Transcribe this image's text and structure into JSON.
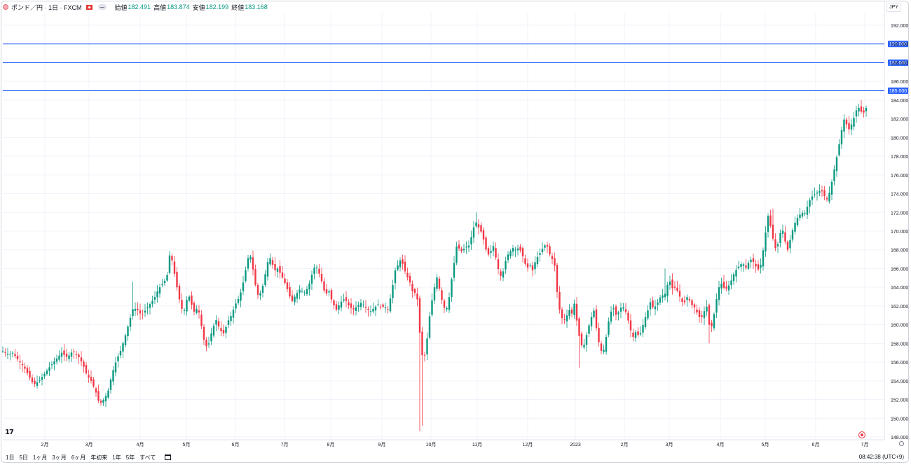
{
  "header": {
    "symbol": "ポンド／円 · 1日 · FXCM",
    "open_label": "始値",
    "open": "182.491",
    "high_label": "高値",
    "high": "183.874",
    "low_label": "安値",
    "low": "182.199",
    "close_label": "終値",
    "close": "183.168",
    "currency": "JPY"
  },
  "bottom": {
    "ranges": [
      "1日",
      "5日",
      "1ヶ月",
      "3ヶ月",
      "6ヶ月",
      "年初来",
      "1年",
      "5年",
      "すべて"
    ],
    "clock": "08:42:38 (UTC+9)"
  },
  "colors": {
    "up": "#089981",
    "down": "#f23645",
    "hline": "#2962ff",
    "grid": "#f0f3fa"
  },
  "chart_data": {
    "type": "candlestick",
    "ylim": [
      148,
      193
    ],
    "yticks": [
      148,
      150,
      152,
      154,
      156,
      158,
      160,
      162,
      164,
      166,
      168,
      170,
      172,
      174,
      176,
      178,
      180,
      182,
      184,
      186,
      188,
      190,
      192
    ],
    "ytick_labels": [
      "148.000",
      "150.000",
      "152.000",
      "154.000",
      "156.000",
      "158.000",
      "160.000",
      "162.000",
      "164.000",
      "166.000",
      "168.000",
      "170.000",
      "172.000",
      "174.000",
      "176.000",
      "178.000",
      "180.000",
      "182.000",
      "184.000",
      "186.000",
      "188.000",
      "190.000",
      "192.000"
    ],
    "xticks": [
      "2月",
      "3月",
      "4月",
      "5月",
      "6月",
      "7月",
      "8月",
      "9月",
      "10月",
      "11月",
      "12月",
      "2023",
      "2月",
      "3月",
      "4月",
      "5月",
      "6月",
      "7月"
    ],
    "horizontal_lines": [
      {
        "value": 190.0,
        "label": "190.000"
      },
      {
        "value": 188.0,
        "label": "188.000"
      },
      {
        "value": 185.0,
        "label": "185.000"
      }
    ],
    "close_path": [
      [
        0,
        157.2
      ],
      [
        8,
        156.8
      ],
      [
        14,
        157.0
      ],
      [
        22,
        156.2
      ],
      [
        30,
        155.5
      ],
      [
        38,
        154.4
      ],
      [
        44,
        153.6
      ],
      [
        52,
        154.0
      ],
      [
        60,
        154.8
      ],
      [
        68,
        155.6
      ],
      [
        76,
        156.3
      ],
      [
        84,
        157.0
      ],
      [
        92,
        156.5
      ],
      [
        100,
        157.2
      ],
      [
        108,
        156.6
      ],
      [
        114,
        155.8
      ],
      [
        120,
        154.6
      ],
      [
        126,
        154.0
      ],
      [
        132,
        153.0
      ],
      [
        138,
        151.5
      ],
      [
        144,
        152.0
      ],
      [
        150,
        152.8
      ],
      [
        156,
        154.8
      ],
      [
        162,
        156.2
      ],
      [
        168,
        157.2
      ],
      [
        174,
        158.6
      ],
      [
        180,
        160.2
      ],
      [
        186,
        161.8
      ],
      [
        192,
        161.6
      ],
      [
        198,
        161.0
      ],
      [
        204,
        161.6
      ],
      [
        210,
        162.2
      ],
      [
        216,
        162.8
      ],
      [
        222,
        163.8
      ],
      [
        228,
        164.4
      ],
      [
        234,
        165.0
      ],
      [
        238,
        167.4
      ],
      [
        242,
        166.8
      ],
      [
        246,
        165.0
      ],
      [
        250,
        163.4
      ],
      [
        254,
        162.0
      ],
      [
        258,
        161.2
      ],
      [
        262,
        162.6
      ],
      [
        266,
        163.0
      ],
      [
        270,
        162.0
      ],
      [
        274,
        161.2
      ],
      [
        278,
        162.0
      ],
      [
        282,
        160.6
      ],
      [
        286,
        158.6
      ],
      [
        292,
        157.4
      ],
      [
        298,
        159.2
      ],
      [
        304,
        160.6
      ],
      [
        310,
        159.4
      ],
      [
        316,
        159.0
      ],
      [
        320,
        160.2
      ],
      [
        326,
        161.0
      ],
      [
        332,
        162.2
      ],
      [
        338,
        163.0
      ],
      [
        344,
        164.8
      ],
      [
        348,
        166.4
      ],
      [
        352,
        167.8
      ],
      [
        356,
        166.4
      ],
      [
        360,
        164.4
      ],
      [
        364,
        163.2
      ],
      [
        368,
        163.4
      ],
      [
        372,
        164.4
      ],
      [
        376,
        166.0
      ],
      [
        380,
        167.4
      ],
      [
        384,
        166.6
      ],
      [
        388,
        165.8
      ],
      [
        392,
        166.0
      ],
      [
        398,
        165.2
      ],
      [
        404,
        164.2
      ],
      [
        408,
        163.4
      ],
      [
        412,
        162.4
      ],
      [
        418,
        163.2
      ],
      [
        424,
        163.8
      ],
      [
        430,
        163.4
      ],
      [
        436,
        164.0
      ],
      [
        442,
        165.6
      ],
      [
        446,
        166.4
      ],
      [
        450,
        165.8
      ],
      [
        456,
        164.4
      ],
      [
        460,
        163.2
      ],
      [
        466,
        163.6
      ],
      [
        470,
        162.4
      ],
      [
        476,
        161.6
      ],
      [
        482,
        162.4
      ],
      [
        488,
        162.8
      ],
      [
        494,
        162.0
      ],
      [
        500,
        161.6
      ],
      [
        506,
        162.0
      ],
      [
        512,
        162.4
      ],
      [
        518,
        161.8
      ],
      [
        524,
        161.4
      ],
      [
        530,
        161.8
      ],
      [
        536,
        162.2
      ],
      [
        540,
        161.8
      ],
      [
        544,
        162.0
      ],
      [
        550,
        161.6
      ],
      [
        556,
        164.0
      ],
      [
        560,
        165.8
      ],
      [
        564,
        166.4
      ],
      [
        568,
        167.0
      ],
      [
        572,
        166.2
      ],
      [
        576,
        165.2
      ],
      [
        580,
        164.8
      ],
      [
        584,
        163.6
      ],
      [
        588,
        163.4
      ],
      [
        592,
        162.6
      ],
      [
        596,
        158.0
      ],
      [
        600,
        156.0
      ],
      [
        604,
        157.4
      ],
      [
        608,
        160.4
      ],
      [
        612,
        162.4
      ],
      [
        616,
        164.0
      ],
      [
        620,
        165.2
      ],
      [
        624,
        163.4
      ],
      [
        628,
        162.2
      ],
      [
        632,
        161.4
      ],
      [
        636,
        162.4
      ],
      [
        640,
        164.6
      ],
      [
        644,
        166.6
      ],
      [
        648,
        168.6
      ],
      [
        652,
        168.0
      ],
      [
        656,
        167.8
      ],
      [
        660,
        168.4
      ],
      [
        664,
        168.2
      ],
      [
        668,
        169.2
      ],
      [
        672,
        170.4
      ],
      [
        676,
        171.0
      ],
      [
        680,
        170.2
      ],
      [
        684,
        169.8
      ],
      [
        688,
        168.4
      ],
      [
        692,
        167.4
      ],
      [
        696,
        167.8
      ],
      [
        700,
        168.4
      ],
      [
        704,
        167.0
      ],
      [
        708,
        165.6
      ],
      [
        712,
        165.0
      ],
      [
        716,
        166.4
      ],
      [
        720,
        167.4
      ],
      [
        724,
        167.8
      ],
      [
        728,
        168.2
      ],
      [
        732,
        168.0
      ],
      [
        736,
        168.2
      ],
      [
        740,
        167.8
      ],
      [
        744,
        166.8
      ],
      [
        748,
        166.0
      ],
      [
        752,
        166.4
      ],
      [
        756,
        165.8
      ],
      [
        760,
        166.8
      ],
      [
        764,
        167.4
      ],
      [
        768,
        167.8
      ],
      [
        772,
        168.4
      ],
      [
        776,
        168.6
      ],
      [
        780,
        167.6
      ],
      [
        784,
        167.0
      ],
      [
        788,
        166.2
      ],
      [
        792,
        162.6
      ],
      [
        796,
        161.0
      ],
      [
        800,
        160.4
      ],
      [
        804,
        160.8
      ],
      [
        808,
        161.6
      ],
      [
        812,
        161.2
      ],
      [
        816,
        162.4
      ],
      [
        820,
        159.8
      ],
      [
        824,
        158.2
      ],
      [
        828,
        157.4
      ],
      [
        832,
        158.6
      ],
      [
        836,
        159.8
      ],
      [
        840,
        160.8
      ],
      [
        844,
        161.6
      ],
      [
        848,
        159.0
      ],
      [
        852,
        157.6
      ],
      [
        856,
        156.8
      ],
      [
        860,
        158.2
      ],
      [
        864,
        160.2
      ],
      [
        868,
        161.4
      ],
      [
        872,
        161.8
      ],
      [
        876,
        160.8
      ],
      [
        880,
        161.6
      ],
      [
        884,
        162.0
      ],
      [
        888,
        161.6
      ],
      [
        892,
        160.6
      ],
      [
        896,
        159.4
      ],
      [
        900,
        158.6
      ],
      [
        904,
        159.4
      ],
      [
        908,
        158.6
      ],
      [
        912,
        159.6
      ],
      [
        916,
        160.6
      ],
      [
        920,
        161.4
      ],
      [
        924,
        162.4
      ],
      [
        928,
        161.8
      ],
      [
        932,
        162.0
      ],
      [
        936,
        162.6
      ],
      [
        940,
        163.2
      ],
      [
        944,
        163.0
      ],
      [
        948,
        164.2
      ],
      [
        952,
        164.6
      ],
      [
        956,
        163.8
      ],
      [
        960,
        164.0
      ],
      [
        964,
        163.4
      ],
      [
        968,
        162.6
      ],
      [
        972,
        162.2
      ],
      [
        976,
        163.0
      ],
      [
        980,
        162.6
      ],
      [
        984,
        162.0
      ],
      [
        988,
        161.8
      ],
      [
        992,
        161.0
      ],
      [
        996,
        160.6
      ],
      [
        1000,
        161.2
      ],
      [
        1004,
        162.2
      ],
      [
        1008,
        160.0
      ],
      [
        1012,
        159.8
      ],
      [
        1016,
        161.6
      ],
      [
        1020,
        163.4
      ],
      [
        1024,
        164.6
      ],
      [
        1028,
        164.0
      ],
      [
        1032,
        163.8
      ],
      [
        1036,
        164.2
      ],
      [
        1040,
        164.8
      ],
      [
        1044,
        165.6
      ],
      [
        1048,
        166.0
      ],
      [
        1052,
        166.4
      ],
      [
        1056,
        166.6
      ],
      [
        1060,
        166.0
      ],
      [
        1064,
        166.6
      ],
      [
        1068,
        167.0
      ],
      [
        1072,
        166.6
      ],
      [
        1076,
        166.0
      ],
      [
        1080,
        165.8
      ],
      [
        1084,
        167.4
      ],
      [
        1088,
        169.6
      ],
      [
        1092,
        171.6
      ],
      [
        1096,
        170.4
      ],
      [
        1100,
        168.8
      ],
      [
        1104,
        167.8
      ],
      [
        1108,
        169.4
      ],
      [
        1112,
        170.4
      ],
      [
        1116,
        169.0
      ],
      [
        1120,
        168.0
      ],
      [
        1124,
        169.2
      ],
      [
        1128,
        170.4
      ],
      [
        1132,
        171.2
      ],
      [
        1136,
        171.6
      ],
      [
        1140,
        172.0
      ],
      [
        1144,
        171.8
      ],
      [
        1148,
        172.6
      ],
      [
        1152,
        173.4
      ],
      [
        1156,
        173.8
      ],
      [
        1160,
        174.0
      ],
      [
        1164,
        174.2
      ],
      [
        1168,
        174.4
      ],
      [
        1172,
        173.8
      ],
      [
        1176,
        173.4
      ],
      [
        1180,
        174.2
      ],
      [
        1184,
        175.6
      ],
      [
        1188,
        177.2
      ],
      [
        1192,
        178.6
      ],
      [
        1196,
        180.4
      ],
      [
        1200,
        182.0
      ],
      [
        1204,
        181.4
      ],
      [
        1208,
        180.8
      ],
      [
        1212,
        181.6
      ],
      [
        1216,
        182.4
      ],
      [
        1220,
        183.4
      ],
      [
        1224,
        182.8
      ],
      [
        1228,
        182.6
      ],
      [
        1232,
        183.17
      ]
    ]
  }
}
